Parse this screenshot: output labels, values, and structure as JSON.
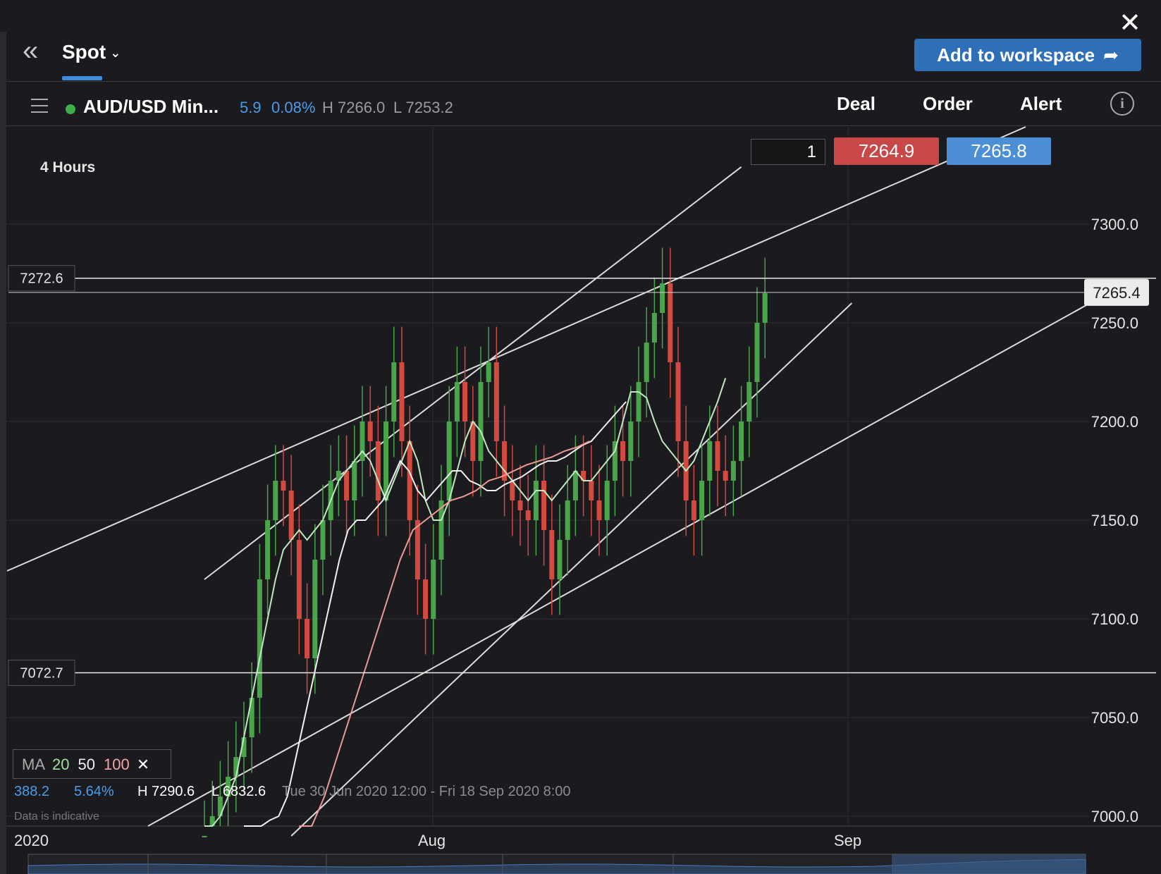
{
  "header": {
    "close_icon": "close-icon",
    "back_icon": "double-chevron-left-icon",
    "tab_label": "Spot",
    "add_button_label": "Add to workspace"
  },
  "instrument": {
    "name": "AUD/USD Min...",
    "change": "5.9",
    "change_pct": "0.08%",
    "high": "H 7266.0",
    "low": "L 7253.2",
    "status_color": "#3fae4a"
  },
  "nav": {
    "deal": "Deal",
    "order": "Order",
    "alert": "Alert",
    "info_icon": "info-icon"
  },
  "ticket": {
    "quantity": "1",
    "sell_price": "7264.9",
    "buy_price": "7265.8",
    "sell_color": "#c94747",
    "buy_color": "#4c8fd6"
  },
  "chart_info": {
    "timeframe": "4 Hours"
  },
  "ma_legend": {
    "label": "MA",
    "p1": "20",
    "p2": "50",
    "p3": "100"
  },
  "stats": {
    "range": "388.2",
    "range_pct": "5.64%",
    "high": "H 7290.6",
    "low": "L 6832.6",
    "date_range": "Tue 30 Jun 2020 12:00 - Fri 18 Sep 2020 8:00",
    "disclaimer": "Data is indicative"
  },
  "chart_data": {
    "type": "candlestick",
    "title": "",
    "xlabel": "",
    "ylabel": "",
    "ylim": [
      6990,
      7350
    ],
    "yticks": [
      "7300.0",
      "7250.0",
      "7200.0",
      "7150.0",
      "7100.0",
      "7050.0",
      "7000.0"
    ],
    "xticks": [
      "2020",
      "Aug",
      "Sep"
    ],
    "markers": [
      {
        "label": "7272.6",
        "value": 7272.6
      },
      {
        "label": "7072.7",
        "value": 7072.7
      }
    ],
    "last_price_label": "7265.4",
    "last_price": 7265.4,
    "grid": true,
    "channel": {
      "upper": [
        [
          0,
          7120
        ],
        [
          68,
          7329
        ]
      ],
      "lower": [
        [
          11,
          6990
        ],
        [
          82,
          7260
        ]
      ]
    },
    "up_color": "#4aa54a",
    "down_color": "#d34a3f",
    "closes": [
      6990,
      7000,
      7010,
      7020,
      7030,
      7040,
      7060,
      7120,
      7150,
      7170,
      7165,
      7140,
      7100,
      7080,
      7130,
      7150,
      7170,
      7175,
      7160,
      7180,
      7200,
      7190,
      7160,
      7200,
      7230,
      7190,
      7150,
      7120,
      7100,
      7130,
      7160,
      7200,
      7220,
      7200,
      7180,
      7220,
      7230,
      7190,
      7170,
      7160,
      7155,
      7150,
      7170,
      7145,
      7120,
      7140,
      7160,
      7175,
      7170,
      7160,
      7150,
      7170,
      7190,
      7180,
      7200,
      7220,
      7240,
      7255,
      7270,
      7230,
      7190,
      7160,
      7150,
      7170,
      7190,
      7175,
      7170,
      7180,
      7200,
      7220,
      7250,
      7265
    ],
    "ma20": [
      6990,
      6995,
      7000,
      7010,
      7020,
      7040,
      7060,
      7080,
      7100,
      7120,
      7135,
      7140,
      7145,
      7140,
      7145,
      7150,
      7160,
      7170,
      7175,
      7180,
      7185,
      7180,
      7170,
      7160,
      7170,
      7180,
      7190,
      7180,
      7160,
      7150,
      7150,
      7160,
      7175,
      7190,
      7200,
      7195,
      7185,
      7180,
      7175,
      7170,
      7165,
      7160,
      7165,
      7165,
      7160,
      7165,
      7170,
      7175,
      7170,
      7170,
      7175,
      7180,
      7185,
      7200,
      7215,
      7215,
      7212,
      7200,
      7190,
      7185,
      7180,
      7175,
      7180,
      7190,
      7200,
      7210,
      7222
    ],
    "ma50": [
      6990,
      6992,
      6995,
      6998,
      7000,
      7010,
      7030,
      7050,
      7070,
      7090,
      7110,
      7130,
      7145,
      7150,
      7150,
      7155,
      7160,
      7170,
      7180,
      7175,
      7165,
      7160,
      7165,
      7170,
      7175,
      7175,
      7170,
      7168,
      7165,
      7165,
      7168,
      7170,
      7172,
      7175,
      7178,
      7180,
      7180,
      7182,
      7185,
      7188,
      7190,
      7195,
      7200,
      7205,
      7210
    ],
    "ma100": [
      6990,
      6995,
      7010,
      7030,
      7050,
      7070,
      7090,
      7110,
      7130,
      7145,
      7150,
      7155,
      7160,
      7162,
      7165,
      7170,
      7172,
      7175,
      7178,
      7180,
      7182,
      7185,
      7187,
      7190
    ]
  }
}
